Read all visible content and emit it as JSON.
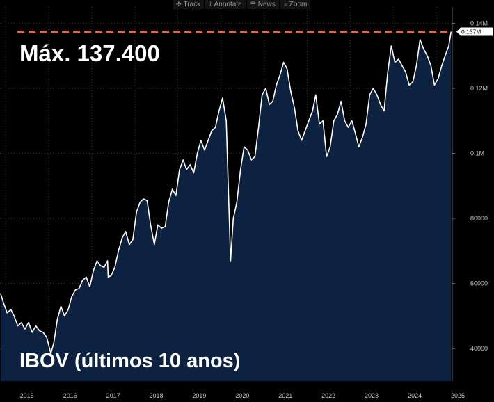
{
  "toolbar": {
    "buttons": [
      {
        "label": "Track",
        "icon": "crosshair-icon",
        "glyph": "✣"
      },
      {
        "label": "Annotate",
        "icon": "annotate-icon",
        "glyph": "⌇"
      },
      {
        "label": "News",
        "icon": "news-icon",
        "glyph": "☰"
      },
      {
        "label": "Zoom",
        "icon": "zoom-icon",
        "glyph": "⌕"
      }
    ]
  },
  "annotations": {
    "max_label": "Máx. 137.400",
    "series_label": "IBOV (últimos 10 anos)"
  },
  "colors": {
    "background": "#000000",
    "area_fill": "#0d2140",
    "line": "#ffffff",
    "max_line": "#e8643c",
    "grid": "#3a3a3a"
  },
  "chart_data": {
    "type": "area",
    "title": "",
    "xlabel": "",
    "ylabel": "",
    "x_ticks": [
      "2015",
      "2016",
      "2017",
      "2018",
      "2019",
      "2020",
      "2021",
      "2022",
      "2023",
      "2024",
      "2025"
    ],
    "y_ticks": [
      {
        "value": 40000,
        "label": "40000"
      },
      {
        "value": 60000,
        "label": "60000"
      },
      {
        "value": 80000,
        "label": "80000"
      },
      {
        "value": 100000,
        "label": "0.1M"
      },
      {
        "value": 120000,
        "label": "0.12M"
      },
      {
        "value": 140000,
        "label": "0.14M"
      }
    ],
    "ylim": [
      30000,
      145000
    ],
    "xlim": [
      "2014-11-15",
      "2025-05-15"
    ],
    "max_value": 137400,
    "last_value_label": "0.137M",
    "grid": true,
    "series": [
      {
        "x": [
          "2014-11-20",
          "2014-12-15",
          "2015-01-15",
          "2015-02-15",
          "2015-03-15",
          "2015-04-15",
          "2015-05-15",
          "2015-06-15",
          "2015-07-15",
          "2015-08-15",
          "2015-09-15",
          "2015-10-15",
          "2015-11-15",
          "2015-12-15",
          "2016-01-20",
          "2016-02-15",
          "2016-03-15",
          "2016-04-15",
          "2016-05-15",
          "2016-06-15",
          "2016-07-15",
          "2016-08-15",
          "2016-09-15",
          "2016-10-15",
          "2016-11-15",
          "2016-12-15",
          "2017-01-15",
          "2017-02-15",
          "2017-03-15",
          "2017-04-15",
          "2017-05-15",
          "2017-05-20",
          "2017-06-15",
          "2017-07-15",
          "2017-08-15",
          "2017-09-15",
          "2017-10-15",
          "2017-11-15",
          "2017-12-15",
          "2018-01-15",
          "2018-02-15",
          "2018-03-15",
          "2018-04-15",
          "2018-05-15",
          "2018-06-15",
          "2018-07-15",
          "2018-08-15",
          "2018-09-15",
          "2018-10-15",
          "2018-11-15",
          "2018-12-15",
          "2019-01-15",
          "2019-02-15",
          "2019-03-15",
          "2019-04-15",
          "2019-05-15",
          "2019-06-15",
          "2019-07-15",
          "2019-08-15",
          "2019-09-15",
          "2019-10-15",
          "2019-11-15",
          "2019-12-15",
          "2020-01-15",
          "2020-02-15",
          "2020-03-23",
          "2020-04-15",
          "2020-05-15",
          "2020-06-15",
          "2020-07-15",
          "2020-08-15",
          "2020-09-15",
          "2020-10-15",
          "2020-11-15",
          "2020-12-15",
          "2021-01-15",
          "2021-02-15",
          "2021-03-15",
          "2021-04-15",
          "2021-05-15",
          "2021-06-15",
          "2021-07-15",
          "2021-08-15",
          "2021-09-15",
          "2021-10-15",
          "2021-11-15",
          "2021-12-15",
          "2022-01-15",
          "2022-02-15",
          "2022-03-15",
          "2022-04-15",
          "2022-05-15",
          "2022-06-15",
          "2022-07-15",
          "2022-08-15",
          "2022-09-15",
          "2022-10-15",
          "2022-11-15",
          "2022-12-15",
          "2023-01-15",
          "2023-02-15",
          "2023-03-15",
          "2023-04-15",
          "2023-05-15",
          "2023-06-15",
          "2023-07-15",
          "2023-08-15",
          "2023-09-15",
          "2023-10-15",
          "2023-11-15",
          "2023-12-15",
          "2024-01-15",
          "2024-02-15",
          "2024-03-15",
          "2024-04-15",
          "2024-05-15",
          "2024-06-15",
          "2024-07-15",
          "2024-08-15",
          "2024-09-15",
          "2024-10-15",
          "2024-11-15",
          "2024-12-15",
          "2025-01-15",
          "2025-02-15",
          "2025-03-15",
          "2025-04-15",
          "2025-05-05"
        ],
        "values": [
          57000,
          54000,
          51000,
          52000,
          50000,
          47000,
          48000,
          46000,
          48000,
          45000,
          47000,
          45500,
          45000,
          43500,
          38500,
          42000,
          49000,
          53000,
          50000,
          52000,
          56000,
          58000,
          58500,
          61000,
          62000,
          59000,
          64000,
          67000,
          65500,
          65000,
          67000,
          62000,
          62500,
          65000,
          70000,
          74000,
          76000,
          72000,
          73500,
          82000,
          85000,
          86000,
          85500,
          78000,
          72000,
          78000,
          77000,
          77500,
          85000,
          89000,
          87000,
          95000,
          98000,
          95000,
          96500,
          94000,
          100000,
          104000,
          101000,
          104000,
          107000,
          108000,
          113000,
          117000,
          110000,
          67000,
          80000,
          85000,
          95000,
          102000,
          101000,
          98000,
          99000,
          108000,
          118000,
          120000,
          115000,
          116000,
          121000,
          124000,
          128000,
          126000,
          119000,
          114000,
          107000,
          104000,
          107000,
          110000,
          113000,
          118000,
          109000,
          110000,
          99000,
          102000,
          110000,
          112000,
          116000,
          110000,
          108000,
          110000,
          106000,
          102000,
          105000,
          109000,
          118000,
          120000,
          118000,
          115000,
          113000,
          125000,
          133000,
          128000,
          129000,
          127000,
          125000,
          121000,
          122000,
          127000,
          135000,
          132000,
          130000,
          127000,
          121000,
          123000,
          127000,
          130000,
          133000,
          137400
        ]
      }
    ]
  }
}
